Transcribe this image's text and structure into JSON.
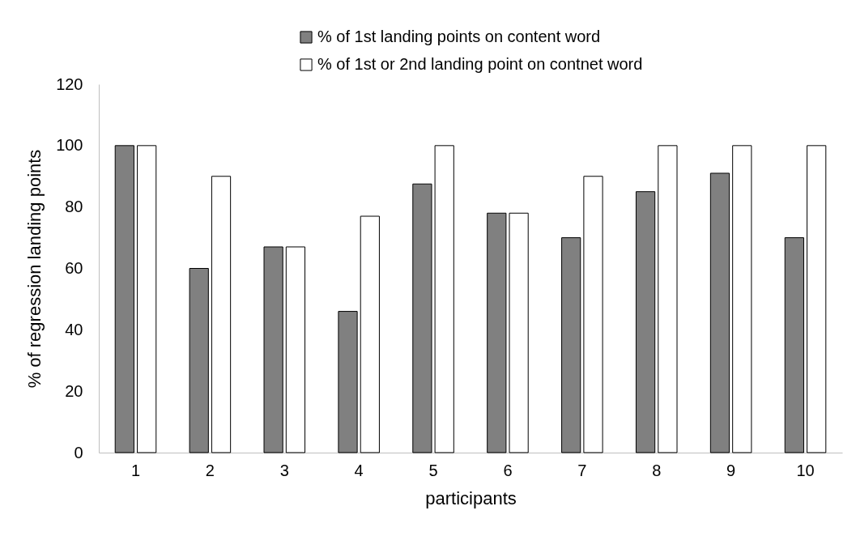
{
  "chart_data": {
    "type": "bar",
    "xlabel": "participants",
    "ylabel": "% of regression landing points",
    "categories": [
      "1",
      "2",
      "3",
      "4",
      "5",
      "6",
      "7",
      "8",
      "9",
      "10"
    ],
    "series": [
      {
        "name": "% of 1st landing points on content word",
        "color": "#808080",
        "values": [
          100,
          60,
          67,
          46,
          87.5,
          78,
          70,
          85,
          91,
          70
        ]
      },
      {
        "name": "% of 1st or 2nd landing point on contnet word",
        "color": "#ffffff",
        "values": [
          100,
          90,
          67,
          77,
          100,
          78,
          90,
          100,
          100,
          100
        ]
      }
    ],
    "ylim": [
      0,
      120
    ],
    "yticks": [
      0,
      20,
      40,
      60,
      80,
      100,
      120
    ],
    "grid": false,
    "legend": "top"
  }
}
